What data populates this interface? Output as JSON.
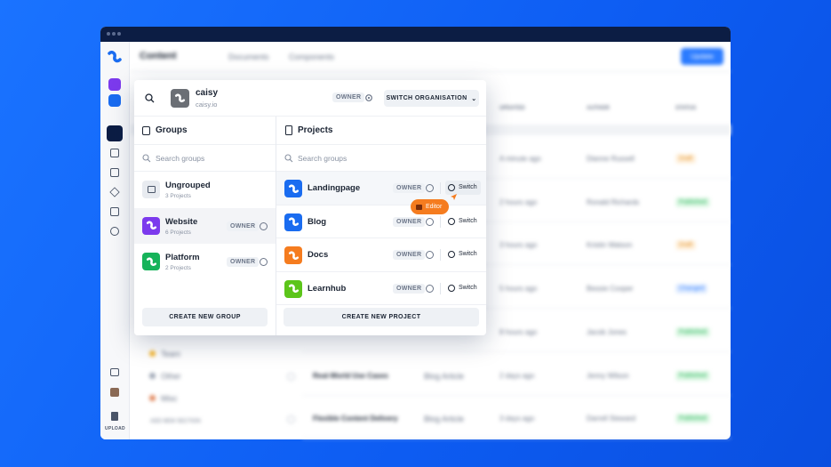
{
  "window": {
    "nav": {
      "title": "Content",
      "tabs": [
        "Documents",
        "Components"
      ],
      "button": "Update"
    },
    "table": {
      "headers": [
        "UPDATED",
        "AUTHOR",
        "STATUS"
      ],
      "rows": [
        {
          "updated": "A minute ago",
          "author": "Dianne Russell",
          "status": "Draft"
        },
        {
          "updated": "2 hours ago",
          "author": "Ronald Richards",
          "status": "Published"
        },
        {
          "updated": "3 hours ago",
          "author": "Kristin Watson",
          "status": "Draft"
        },
        {
          "updated": "5 hours ago",
          "author": "Bessie Cooper",
          "status": "Changed"
        },
        {
          "updated": "8 hours ago",
          "author": "Jacob Jones",
          "status": "Published"
        },
        {
          "title": "Real-World Use Cases",
          "type": "Blog Article",
          "updated": "2 days ago",
          "author": "Jenny Wilson",
          "status": "Published"
        },
        {
          "title": "Flexible Content Delivery",
          "type": "Blog Article",
          "updated": "3 days ago",
          "author": "Darrell Steward",
          "status": "Published"
        }
      ]
    },
    "sections": [
      "Team",
      "Other",
      "Misc"
    ],
    "add_section": "ADD NEW SECTION",
    "upload": "UPLOAD"
  },
  "org": {
    "name": "caisy",
    "domain": "caisy.io",
    "role": "OWNER",
    "switch": "SWITCH ORGANISATION"
  },
  "groups": {
    "title": "Groups",
    "search": "Search groups",
    "items": [
      {
        "name": "Ungrouped",
        "count": "3 Projects",
        "color": "#e8ebf0"
      },
      {
        "name": "Website",
        "count": "6 Projects",
        "role": "OWNER",
        "color": "#7c3aed"
      },
      {
        "name": "Platform",
        "count": "2 Projects",
        "role": "OWNER",
        "color": "#16b35a"
      }
    ],
    "button": "CREATE NEW GROUP"
  },
  "projects": {
    "title": "Projects",
    "search": "Search groups",
    "items": [
      {
        "name": "Landingpage",
        "role": "OWNER",
        "action": "Switch",
        "color": "#1a6cf0"
      },
      {
        "name": "Blog",
        "role": "OWNER",
        "action": "Switch",
        "color": "#1a6cf0"
      },
      {
        "name": "Docs",
        "role": "OWNER",
        "action": "Switch",
        "color": "#f57c1f"
      },
      {
        "name": "Learnhub",
        "role": "OWNER",
        "action": "Switch",
        "color": "#5cc51a"
      }
    ],
    "button": "CREATE NEW PROJECT"
  },
  "tooltip": "Editor"
}
